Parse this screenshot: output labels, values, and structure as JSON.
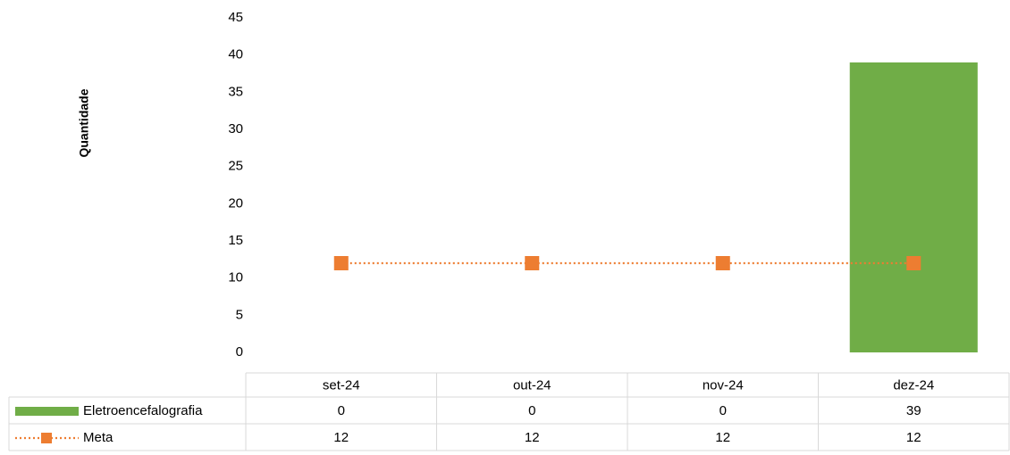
{
  "chart_data": {
    "type": "bar",
    "y_axis_label": "Quantidade",
    "categories": [
      "set-24",
      "out-24",
      "nov-24",
      "dez-24"
    ],
    "series": [
      {
        "name": "Eletroencefalografia",
        "type": "bar",
        "color": "#70ad47",
        "values": [
          0,
          0,
          0,
          39
        ]
      },
      {
        "name": "Meta",
        "type": "line",
        "color": "#ed7d31",
        "values": [
          12,
          12,
          12,
          12
        ]
      }
    ],
    "ylim": [
      0,
      45
    ],
    "yticks": [
      0,
      5,
      10,
      15,
      20,
      25,
      30,
      35,
      40,
      45
    ],
    "grid": false,
    "data_table": true
  }
}
